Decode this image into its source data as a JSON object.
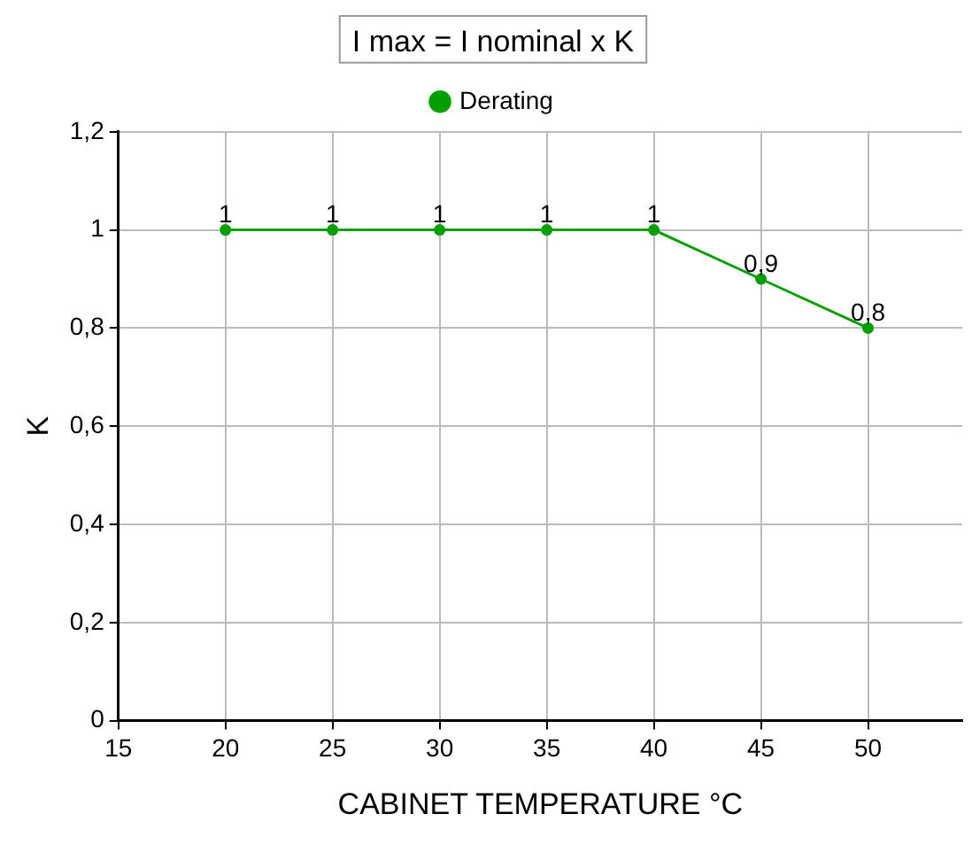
{
  "chart_data": {
    "type": "line",
    "title": "I max = I nominal x K",
    "xlabel": "CABINET TEMPERATURE °C",
    "ylabel": "K",
    "x": [
      20,
      25,
      30,
      35,
      40,
      45,
      50
    ],
    "series": [
      {
        "name": "Derating",
        "color": "#00a000",
        "values": [
          1,
          1,
          1,
          1,
          1,
          0.9,
          0.8
        ],
        "value_labels": [
          "1",
          "1",
          "1",
          "1",
          "1",
          "0,9",
          "0,8"
        ]
      }
    ],
    "xlim": [
      15,
      54.4
    ],
    "xticks": [
      15,
      20,
      25,
      30,
      35,
      40,
      45,
      50
    ],
    "ylim": [
      0,
      1.2
    ],
    "yticks": [
      0,
      {
        "value": 0.2,
        "label": "0,2"
      },
      {
        "value": 0.4,
        "label": "0,4"
      },
      {
        "value": 0.6,
        "label": "0,6"
      },
      {
        "value": 0.8,
        "label": "0,8"
      },
      1,
      {
        "value": 1.2,
        "label": "1,2"
      }
    ],
    "grid": true,
    "legend": "top",
    "marker": "circle",
    "line_style": "solid"
  }
}
